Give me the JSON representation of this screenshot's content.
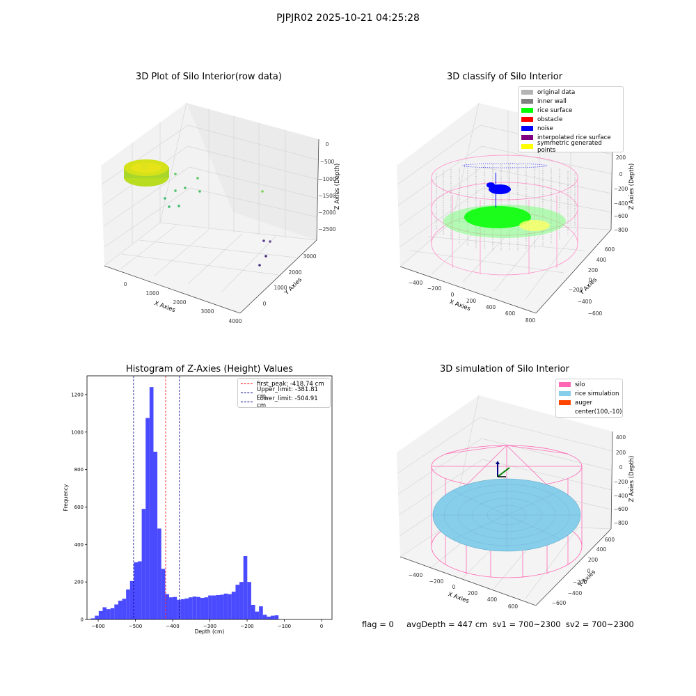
{
  "suptitle": "PJPJR02 2025-10-21 04:25:28",
  "footer": "flag = 0     avgDepth = 447 cm  sv1 = 700~2300  sv2 = 700~2300",
  "chart_data": [
    {
      "type": "scatter",
      "title": "3D Plot of Silo Interior(row data)",
      "xlabel": "X Axies",
      "ylabel": "Y Axies",
      "zlabel": "Z Axies (Depth)",
      "x_ticks": [
        "0",
        "1000",
        "2000",
        "3000",
        "4000"
      ],
      "y_ticks": [
        "0",
        "1000",
        "2000",
        "3000"
      ],
      "z_ticks": [
        "0",
        "−500",
        "−1000",
        "−1500",
        "−2000",
        "−2500"
      ],
      "colormap": "viridis"
    },
    {
      "type": "scatter",
      "title": "3D classify of Silo Interior",
      "xlabel": "X Axies",
      "ylabel": "Y Axies",
      "zlabel": "Z Axies (Depth)",
      "x_ticks": [
        "−400",
        "−200",
        "0",
        "200",
        "400",
        "600",
        "800"
      ],
      "y_ticks": [
        "−600",
        "−400",
        "−200",
        "0",
        "200",
        "400",
        "600"
      ],
      "z_ticks": [
        "200",
        "0",
        "−200",
        "−400",
        "−600",
        "−800"
      ],
      "legend_position": "top-right",
      "legend": [
        {
          "label": "original data",
          "color": "#b4b4b4"
        },
        {
          "label": "inner wall",
          "color": "#808080"
        },
        {
          "label": "rice surface",
          "color": "#00ff00"
        },
        {
          "label": "obstacle",
          "color": "#ff0000"
        },
        {
          "label": "noise",
          "color": "#0000ff"
        },
        {
          "label": "interpolated rice surface",
          "color": "#800080"
        },
        {
          "label": "symmetric generated points",
          "color": "#ffff00"
        }
      ]
    },
    {
      "type": "bar",
      "title": "Histogram of Z-Axies (Height) Values",
      "xlabel": "Depth (cm)",
      "ylabel": "Frequency",
      "xlim": [
        -630,
        28
      ],
      "ylim": [
        0,
        1300
      ],
      "x_ticks": [
        -600,
        -500,
        -400,
        -300,
        -200,
        -100,
        0
      ],
      "x_tick_labels": [
        "−600",
        "−500",
        "−400",
        "−300",
        "−200",
        "−100",
        "0"
      ],
      "y_ticks": [
        0,
        200,
        400,
        600,
        800,
        1000,
        1200
      ],
      "bar_color": "#4a4aff",
      "bin_start": -630,
      "bin_width": 10.5,
      "values": [
        2,
        6,
        20,
        45,
        65,
        55,
        60,
        80,
        100,
        110,
        160,
        205,
        305,
        310,
        590,
        1075,
        1240,
        895,
        485,
        270,
        135,
        118,
        120,
        105,
        108,
        112,
        118,
        122,
        120,
        115,
        118,
        128,
        128,
        130,
        132,
        138,
        135,
        148,
        185,
        200,
        338,
        200,
        78,
        42,
        70,
        25,
        15,
        20,
        22
      ],
      "lines": [
        {
          "label": "first_peak: -418.74 cm",
          "x": -418.74,
          "color": "#ff0000"
        },
        {
          "label": "Upper_limit: -381.81 cm",
          "x": -381.81,
          "color": "#00008b"
        },
        {
          "label": "Lower_limit: -504.91 cm",
          "x": -504.91,
          "color": "#00008b"
        }
      ],
      "legend_position": "top-right"
    },
    {
      "type": "scatter",
      "title": "3D simulation of Silo Interior",
      "xlabel": "X Axies",
      "ylabel": "Y Axies",
      "zlabel": "Z Axies (Depth)",
      "x_ticks": [
        "−400",
        "−200",
        "0",
        "200",
        "400",
        "600"
      ],
      "y_ticks": [
        "−600",
        "−400",
        "−200",
        "0",
        "200",
        "400",
        "600"
      ],
      "z_ticks": [
        "400",
        "200",
        "0",
        "−200",
        "−400",
        "−600",
        "−800"
      ],
      "legend_position": "top-right",
      "legend": [
        {
          "label": "silo",
          "color": "#ff69b4"
        },
        {
          "label": "rice simulation",
          "color": "#87ceeb"
        },
        {
          "label": "auger",
          "color": "#ff4500"
        },
        {
          "label": "center(100,-10)",
          "color": "#ffffff"
        }
      ]
    }
  ]
}
